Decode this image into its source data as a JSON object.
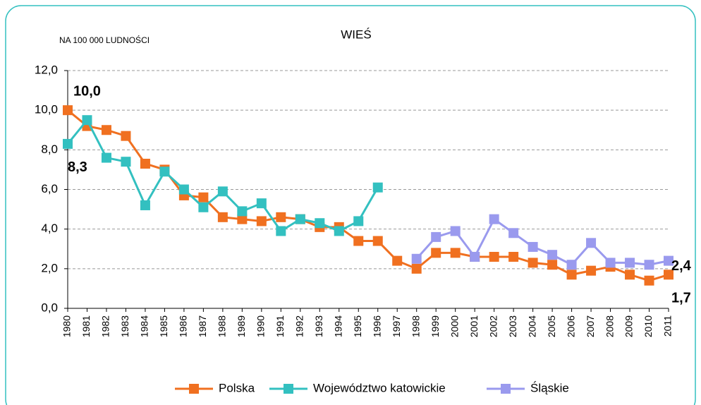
{
  "chart_data": {
    "type": "line",
    "title": "WIEŚ",
    "y_label": "NA 100 000 LUDNOŚCI",
    "categories": [
      "1980",
      "1981",
      "1982",
      "1983",
      "1984",
      "1985",
      "1986",
      "1987",
      "1988",
      "1989",
      "1990",
      "1991",
      "1992",
      "1993",
      "1994",
      "1995",
      "1996",
      "1997",
      "1998",
      "1999",
      "2000",
      "2001",
      "2002",
      "2003",
      "2004",
      "2005",
      "2006",
      "2007",
      "2008",
      "2009",
      "2010",
      "2011"
    ],
    "series": [
      {
        "name": "Polska",
        "color": "#f07020",
        "values": [
          10.0,
          9.2,
          9.0,
          8.7,
          7.3,
          7.0,
          5.7,
          5.6,
          4.6,
          4.5,
          4.4,
          4.6,
          4.5,
          4.1,
          4.1,
          3.4,
          3.4,
          2.4,
          2.0,
          2.8,
          2.8,
          2.6,
          2.6,
          2.6,
          2.3,
          2.2,
          1.7,
          1.9,
          2.1,
          1.7,
          1.4,
          1.7
        ],
        "value_labels": [
          "10,0",
          null,
          null,
          null,
          null,
          null,
          null,
          null,
          null,
          null,
          null,
          null,
          null,
          null,
          null,
          null,
          null,
          null,
          null,
          null,
          null,
          null,
          null,
          null,
          null,
          null,
          null,
          null,
          null,
          null,
          null,
          "1,7"
        ]
      },
      {
        "name": "Województwo katowickie",
        "color": "#33c0c0",
        "values": [
          8.3,
          9.5,
          7.6,
          7.4,
          5.2,
          6.9,
          6.0,
          5.1,
          5.9,
          4.9,
          5.3,
          3.9,
          4.5,
          4.3,
          3.9,
          4.4,
          6.1,
          null,
          null,
          null,
          null,
          null,
          null,
          null,
          null,
          null,
          null,
          null,
          null,
          null,
          null,
          null
        ],
        "value_labels": [
          "8,3",
          null,
          null,
          null,
          null,
          null,
          null,
          null,
          null,
          null,
          null,
          null,
          null,
          null,
          null,
          null,
          null,
          null,
          null,
          null,
          null,
          null,
          null,
          null,
          null,
          null,
          null,
          null,
          null,
          null,
          null,
          null
        ]
      },
      {
        "name": "Śląskie",
        "color": "#9a9aee",
        "values": [
          null,
          null,
          null,
          null,
          null,
          null,
          null,
          null,
          null,
          null,
          null,
          null,
          null,
          null,
          null,
          null,
          null,
          null,
          2.5,
          3.6,
          3.9,
          2.6,
          4.5,
          3.8,
          3.1,
          2.7,
          2.2,
          3.3,
          2.3,
          2.3,
          2.2,
          2.4
        ],
        "value_labels": [
          null,
          null,
          null,
          null,
          null,
          null,
          null,
          null,
          null,
          null,
          null,
          null,
          null,
          null,
          null,
          null,
          null,
          null,
          null,
          null,
          null,
          null,
          null,
          null,
          null,
          null,
          null,
          null,
          null,
          null,
          null,
          "2,4"
        ]
      }
    ],
    "ylim": [
      0,
      12
    ],
    "yticks": [
      {
        "value": 0,
        "label": "0,0"
      },
      {
        "value": 2,
        "label": "2,0"
      },
      {
        "value": 4,
        "label": "4,0"
      },
      {
        "value": 6,
        "label": "6,0"
      },
      {
        "value": 8,
        "label": "8,0"
      },
      {
        "value": 10,
        "label": "10,0"
      },
      {
        "value": 12,
        "label": "12,0"
      }
    ],
    "grid": true,
    "legend": "bottom"
  }
}
